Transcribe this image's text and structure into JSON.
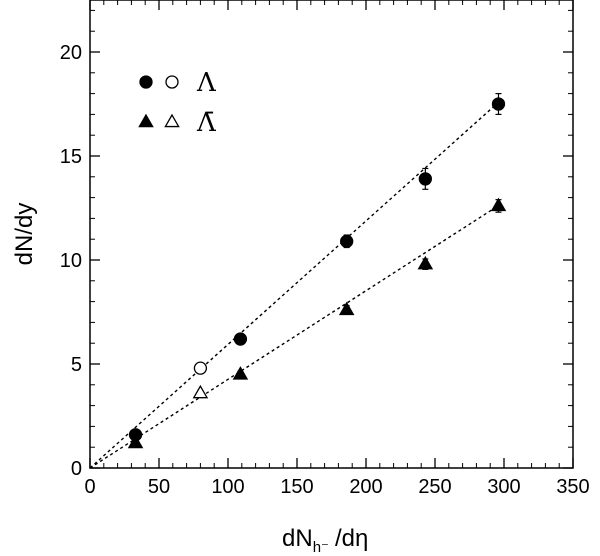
{
  "chart_data": {
    "type": "scatter",
    "xlabel": "dN",
    "xlabel_sub": "h⁻",
    "xlabel_tail": "/dη",
    "ylabel": "dN/dy",
    "xlim": [
      0,
      350
    ],
    "ylim": [
      0,
      22.5
    ],
    "xticks": [
      0,
      50,
      100,
      150,
      200,
      250,
      300,
      350
    ],
    "yticks": [
      0,
      5,
      10,
      15,
      20
    ],
    "grid": false,
    "legend_position": "top-left",
    "series": [
      {
        "name": "Λ",
        "symbol": "circle",
        "filled_x": [
          33,
          109,
          186,
          243,
          296
        ],
        "filled_y": [
          1.6,
          6.2,
          10.9,
          13.9,
          17.5
        ],
        "filled_err": [
          0.15,
          0.2,
          0.3,
          0.5,
          0.5
        ],
        "open_x": [
          80
        ],
        "open_y": [
          4.8
        ],
        "fit": {
          "x": [
            0,
            298
          ],
          "y": [
            0,
            17.7
          ]
        }
      },
      {
        "name": "Λ̄",
        "symbol": "triangle",
        "filled_x": [
          33,
          109,
          186,
          243,
          296
        ],
        "filled_y": [
          1.2,
          4.5,
          7.6,
          9.8,
          12.6
        ],
        "filled_err": [
          0.1,
          0.15,
          0.2,
          0.25,
          0.3
        ],
        "open_x": [
          80
        ],
        "open_y": [
          3.6
        ],
        "fit": {
          "x": [
            0,
            298
          ],
          "y": [
            0,
            12.7
          ]
        }
      }
    ],
    "colors": {
      "marker": "#000000",
      "axis": "#000000",
      "background": "#ffffff"
    }
  }
}
